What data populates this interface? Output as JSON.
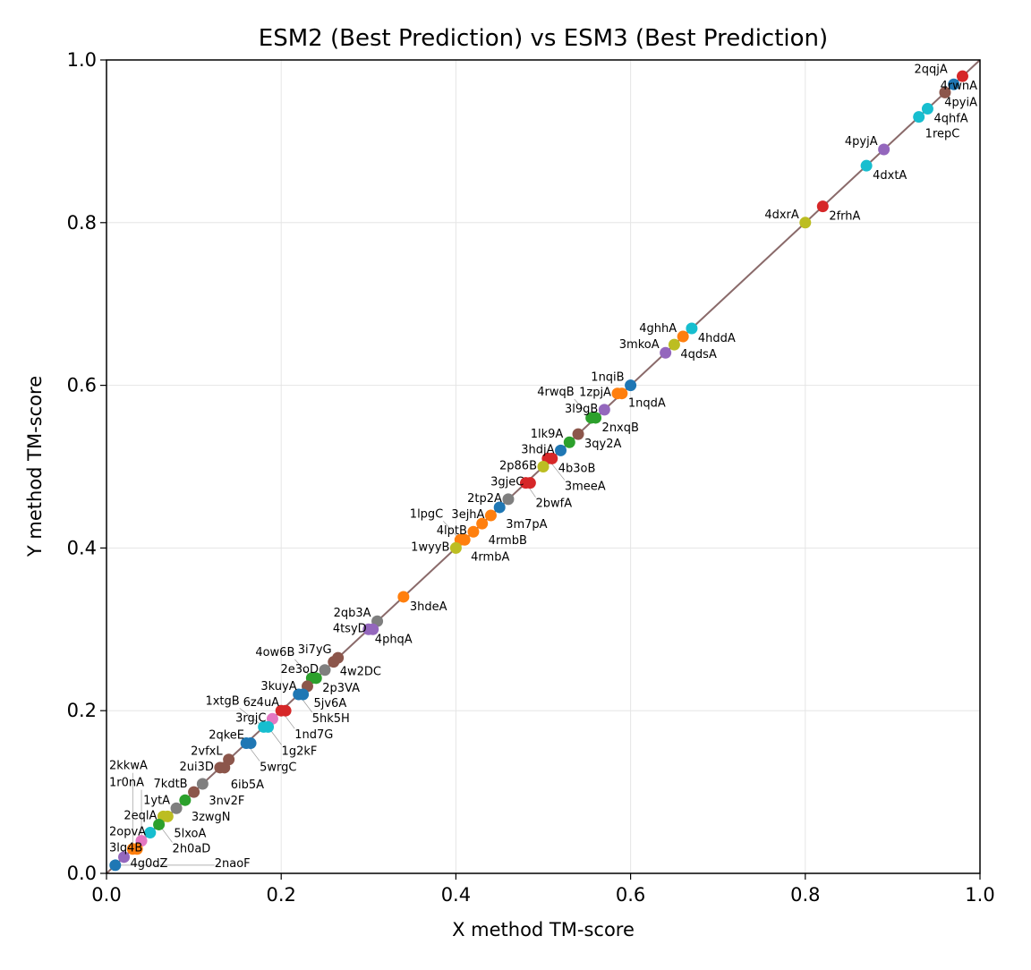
{
  "chart_data": {
    "type": "scatter",
    "title": "ESM2 (Best Prediction) vs ESM3 (Best Prediction)",
    "xlabel": "X method TM-score",
    "ylabel": "Y method TM-score",
    "xlim": [
      0,
      1
    ],
    "ylim": [
      0,
      1
    ],
    "xticks": [
      "0.0",
      "0.2",
      "0.4",
      "0.6",
      "0.8",
      "1.0"
    ],
    "yticks": [
      "0.0",
      "0.2",
      "0.4",
      "0.6",
      "0.8",
      "1.0"
    ],
    "grid": true,
    "reference_line": "y = x",
    "palette": [
      "#1f77b4",
      "#ff7f0e",
      "#2ca02c",
      "#d62728",
      "#9467bd",
      "#8c564b",
      "#e377c2",
      "#7f7f7f",
      "#bcbd22",
      "#17becf"
    ],
    "points": [
      {
        "x": 0.98,
        "y": 0.98,
        "label": "4rwnA",
        "c": 3,
        "side": "r"
      },
      {
        "x": 0.97,
        "y": 0.97,
        "label": "2qqjA",
        "c": 0,
        "side": "l"
      },
      {
        "x": 0.96,
        "y": 0.96,
        "label": "4pyiA",
        "c": 5,
        "side": "r"
      },
      {
        "x": 0.94,
        "y": 0.94,
        "label": "4qhfA",
        "c": 9,
        "side": "r"
      },
      {
        "x": 0.93,
        "y": 0.93,
        "label": "1repC",
        "c": 9,
        "side": "r"
      },
      {
        "x": 0.89,
        "y": 0.89,
        "label": "4pyjA",
        "c": 4,
        "side": "l"
      },
      {
        "x": 0.87,
        "y": 0.87,
        "label": "4dxtA",
        "c": 9,
        "side": "r"
      },
      {
        "x": 0.82,
        "y": 0.82,
        "label": "2frhA",
        "c": 3,
        "side": "r"
      },
      {
        "x": 0.8,
        "y": 0.8,
        "label": "4dxrA",
        "c": 8,
        "side": "l"
      },
      {
        "x": 0.67,
        "y": 0.67,
        "label": "4hddA",
        "c": 9,
        "side": "r"
      },
      {
        "x": 0.66,
        "y": 0.66,
        "label": "4ghhA",
        "c": 1,
        "side": "l"
      },
      {
        "x": 0.65,
        "y": 0.65,
        "label": "4qdsA",
        "c": 8,
        "side": "r"
      },
      {
        "x": 0.64,
        "y": 0.64,
        "label": "3mkoA",
        "c": 4,
        "side": "l"
      },
      {
        "x": 0.6,
        "y": 0.6,
        "label": "1nqiB",
        "c": 0,
        "side": "l"
      },
      {
        "x": 0.59,
        "y": 0.59,
        "label": "1nqdA",
        "c": 1,
        "side": "r"
      },
      {
        "x": 0.585,
        "y": 0.59,
        "label": "1zpjA",
        "c": 1,
        "side": "l"
      },
      {
        "x": 0.57,
        "y": 0.57,
        "label": "3l9gB",
        "c": 4,
        "side": "l"
      },
      {
        "x": 0.56,
        "y": 0.56,
        "label": "2nxqB",
        "c": 2,
        "side": "r"
      },
      {
        "x": 0.555,
        "y": 0.56,
        "label": "4rwqB",
        "c": 2,
        "side": "l"
      },
      {
        "x": 0.54,
        "y": 0.54,
        "label": "3qy2A",
        "c": 5,
        "side": "r"
      },
      {
        "x": 0.53,
        "y": 0.53,
        "label": "1lk9A",
        "c": 2,
        "side": "l"
      },
      {
        "x": 0.52,
        "y": 0.52,
        "label": "3hdjA",
        "c": 0,
        "side": "l"
      },
      {
        "x": 0.51,
        "y": 0.51,
        "label": "4b3oB",
        "c": 3,
        "side": "r"
      },
      {
        "x": 0.505,
        "y": 0.51,
        "label": "3meeA",
        "c": 3,
        "side": "l"
      },
      {
        "x": 0.5,
        "y": 0.5,
        "label": "2p86B",
        "c": 8,
        "side": "l"
      },
      {
        "x": 0.48,
        "y": 0.48,
        "label": "2bwfA",
        "c": 3,
        "side": "l"
      },
      {
        "x": 0.485,
        "y": 0.48,
        "label": "3gjeC",
        "c": 3,
        "side": "r"
      },
      {
        "x": 0.46,
        "y": 0.46,
        "label": "2tp2A",
        "c": 7,
        "side": "r"
      },
      {
        "x": 0.45,
        "y": 0.45,
        "label": "3m7pA",
        "c": 0,
        "side": "l"
      },
      {
        "x": 0.44,
        "y": 0.44,
        "label": "3ejhA",
        "c": 1,
        "side": "r"
      },
      {
        "x": 0.43,
        "y": 0.43,
        "label": "4rmbB",
        "c": 1,
        "side": "l"
      },
      {
        "x": 0.42,
        "y": 0.42,
        "label": "4lptB",
        "c": 1,
        "side": "r"
      },
      {
        "x": 0.41,
        "y": 0.41,
        "label": "4rmbA",
        "c": 1,
        "side": "r"
      },
      {
        "x": 0.405,
        "y": 0.41,
        "label": "1lpgC",
        "c": 1,
        "side": "l"
      },
      {
        "x": 0.4,
        "y": 0.4,
        "label": "1wyyB",
        "c": 8,
        "side": "r"
      },
      {
        "x": 0.34,
        "y": 0.34,
        "label": "3hdeA",
        "c": 1,
        "side": "r"
      },
      {
        "x": 0.31,
        "y": 0.31,
        "label": "2qb3A",
        "c": 7,
        "side": "l"
      },
      {
        "x": 0.3,
        "y": 0.3,
        "label": "4phqA",
        "c": 4,
        "side": "r"
      },
      {
        "x": 0.305,
        "y": 0.3,
        "label": "4tsyD",
        "c": 4,
        "side": "l"
      },
      {
        "x": 0.26,
        "y": 0.26,
        "label": "4w2DC",
        "c": 5,
        "side": "r"
      },
      {
        "x": 0.265,
        "y": 0.265,
        "label": "3i7yG",
        "c": 5,
        "side": "l"
      },
      {
        "x": 0.25,
        "y": 0.25,
        "label": "2e3oD",
        "c": 7,
        "side": "l"
      },
      {
        "x": 0.24,
        "y": 0.24,
        "label": "2p3VA",
        "c": 2,
        "side": "r"
      },
      {
        "x": 0.235,
        "y": 0.24,
        "label": "4ow6B",
        "c": 2,
        "side": "l"
      },
      {
        "x": 0.23,
        "y": 0.23,
        "label": "5jv6A",
        "c": 5,
        "side": "r"
      },
      {
        "x": 0.22,
        "y": 0.22,
        "label": "5hk5H",
        "c": 0,
        "side": "l"
      },
      {
        "x": 0.225,
        "y": 0.22,
        "label": "3kuyA",
        "c": 0,
        "side": "r"
      },
      {
        "x": 0.2,
        "y": 0.2,
        "label": "1nd7G",
        "c": 3,
        "side": "l"
      },
      {
        "x": 0.205,
        "y": 0.2,
        "label": "6z4uA",
        "c": 3,
        "side": "r"
      },
      {
        "x": 0.19,
        "y": 0.19,
        "label": "3rgjC",
        "c": 6,
        "side": "l"
      },
      {
        "x": 0.18,
        "y": 0.18,
        "label": "1xtgB",
        "c": 9,
        "side": "l"
      },
      {
        "x": 0.185,
        "y": 0.18,
        "label": "1g2kF",
        "c": 9,
        "side": "r"
      },
      {
        "x": 0.16,
        "y": 0.16,
        "label": "5wrgC",
        "c": 0,
        "side": "l"
      },
      {
        "x": 0.165,
        "y": 0.16,
        "label": "2qkeE",
        "c": 0,
        "side": "r"
      },
      {
        "x": 0.14,
        "y": 0.14,
        "label": "2vfxL",
        "c": 5,
        "side": "l"
      },
      {
        "x": 0.13,
        "y": 0.13,
        "label": "2ui3D",
        "c": 5,
        "side": "l"
      },
      {
        "x": 0.135,
        "y": 0.13,
        "label": "6ib5A",
        "c": 5,
        "side": "r"
      },
      {
        "x": 0.11,
        "y": 0.11,
        "label": "3nv2F",
        "c": 7,
        "side": "r"
      },
      {
        "x": 0.1,
        "y": 0.1,
        "label": "7kdtB",
        "c": 5,
        "side": "l"
      },
      {
        "x": 0.09,
        "y": 0.09,
        "label": "3zwgN",
        "c": 2,
        "side": "r"
      },
      {
        "x": 0.08,
        "y": 0.08,
        "label": "1ytA",
        "c": 7,
        "side": "l"
      },
      {
        "x": 0.07,
        "y": 0.07,
        "label": "5lxoA",
        "c": 8,
        "side": "r"
      },
      {
        "x": 0.065,
        "y": 0.07,
        "label": "2eqlA",
        "c": 8,
        "side": "l"
      },
      {
        "x": 0.06,
        "y": 0.06,
        "label": "2h0aD",
        "c": 2,
        "side": "r"
      },
      {
        "x": 0.05,
        "y": 0.05,
        "label": "2opvA",
        "c": 9,
        "side": "l"
      },
      {
        "x": 0.04,
        "y": 0.04,
        "label": "1r0nA",
        "c": 6,
        "side": "r"
      },
      {
        "x": 0.03,
        "y": 0.03,
        "label": "2kkwA",
        "c": 1,
        "side": "l"
      },
      {
        "x": 0.035,
        "y": 0.03,
        "label": "3lq4B",
        "c": 1,
        "side": "r"
      },
      {
        "x": 0.02,
        "y": 0.02,
        "label": "4g0dZ",
        "c": 4,
        "side": "l"
      },
      {
        "x": 0.01,
        "y": 0.01,
        "label": "2naoF",
        "c": 0,
        "side": "r"
      }
    ]
  }
}
